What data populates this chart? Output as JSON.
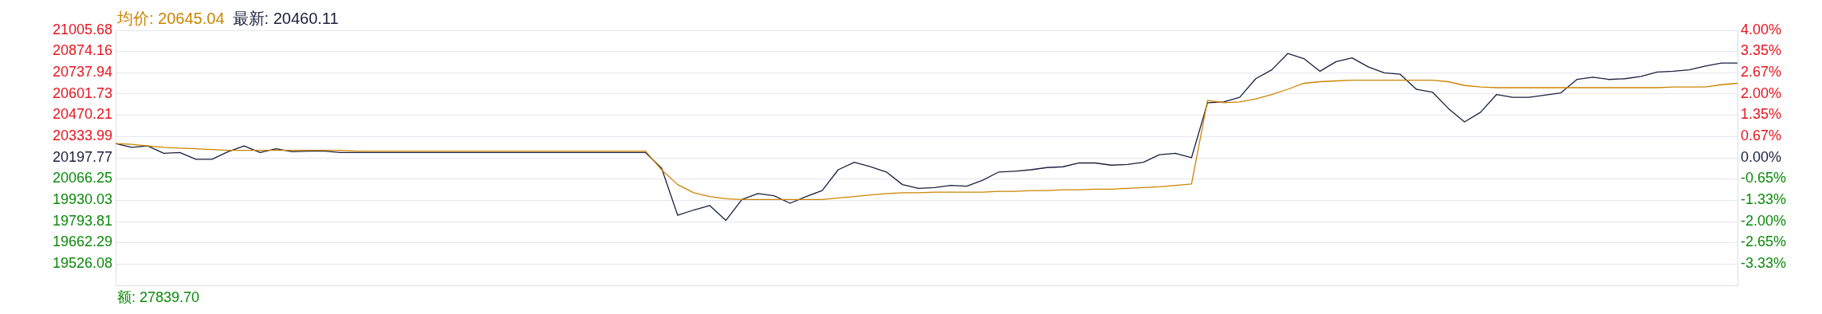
{
  "chart_data": {
    "type": "line",
    "categories": [
      null,
      null,
      null,
      null,
      null,
      null,
      null,
      null,
      null,
      null,
      null,
      null,
      null,
      null,
      null,
      null,
      null,
      null,
      null,
      null,
      null,
      null,
      null,
      null,
      null,
      null,
      null,
      null,
      null,
      null,
      null,
      null,
      null,
      null,
      null,
      null,
      null,
      null,
      null,
      null,
      null,
      null,
      null,
      null,
      null,
      null,
      null,
      null,
      null,
      null,
      null,
      null,
      null,
      null,
      null,
      null,
      null,
      null,
      null,
      null,
      null,
      null,
      null,
      null,
      null,
      null,
      null,
      null,
      null,
      null,
      null,
      null,
      null,
      null,
      null,
      null,
      null,
      null,
      null,
      null,
      null,
      null,
      null,
      null,
      null,
      null,
      null,
      null,
      null,
      null,
      null,
      null,
      null,
      null,
      null,
      null,
      null,
      null,
      null,
      null,
      null,
      null
    ],
    "series": [
      {
        "name": "均价: 20645.04",
        "color": "#cc8400",
        "values": [
          20288,
          20283,
          20273,
          20264,
          20259,
          20255,
          20250,
          20245,
          20245,
          20245,
          20245,
          20245,
          20245,
          20245,
          20245,
          20240,
          20240,
          20240,
          20240,
          20240,
          20240,
          20240,
          20240,
          20240,
          20240,
          20240,
          20240,
          20240,
          20240,
          20240,
          20240,
          20240,
          20240,
          20240,
          20122,
          20028,
          19976,
          19952,
          19938,
          19933,
          19933,
          19933,
          19933,
          19933,
          19933,
          19943,
          19952,
          19962,
          19971,
          19976,
          19976,
          19980,
          19980,
          19980,
          19980,
          19985,
          19985,
          19990,
          19990,
          19995,
          19995,
          19999,
          19999,
          20004,
          20009,
          20014,
          20023,
          20032,
          20562,
          20547,
          20552,
          20571,
          20599,
          20632,
          20670,
          20680,
          20685,
          20689,
          20689,
          20689,
          20689,
          20689,
          20689,
          20680,
          20656,
          20647,
          20642,
          20642,
          20642,
          20642,
          20642,
          20642,
          20642,
          20642,
          20642,
          20642,
          20642,
          20647,
          20647,
          20647,
          20661,
          20670
        ]
      },
      {
        "name": "最新: 20460.11",
        "color": "#1a1f3d",
        "values": [
          20288,
          20264,
          20273,
          20226,
          20231,
          20188,
          20188,
          20236,
          20273,
          20231,
          20255,
          20236,
          20240,
          20240,
          20231,
          20231,
          20231,
          20231,
          20231,
          20231,
          20231,
          20231,
          20231,
          20231,
          20231,
          20231,
          20231,
          20231,
          20231,
          20231,
          20231,
          20231,
          20231,
          20231,
          20132,
          19834,
          19867,
          19895,
          19801,
          19933,
          19971,
          19957,
          19910,
          19952,
          19990,
          20122,
          20169,
          20141,
          20108,
          20028,
          20004,
          20009,
          20023,
          20018,
          20056,
          20108,
          20113,
          20122,
          20136,
          20141,
          20165,
          20165,
          20151,
          20155,
          20169,
          20217,
          20226,
          20198,
          20547,
          20552,
          20581,
          20699,
          20755,
          20859,
          20826,
          20746,
          20807,
          20831,
          20774,
          20736,
          20727,
          20632,
          20614,
          20510,
          20425,
          20486,
          20599,
          20581,
          20581,
          20595,
          20609,
          20694,
          20708,
          20694,
          20699,
          20713,
          20741,
          20746,
          20755,
          20779,
          20798,
          20798
        ]
      }
    ],
    "ylim": [
      19389.86,
      21005.68
    ],
    "yticks": [
      21005.68,
      20874.16,
      20737.94,
      20601.73,
      20470.21,
      20333.99,
      20197.77,
      20066.25,
      19930.03,
      19793.81,
      19662.29,
      19526.08
    ],
    "y2lim": [
      -4,
      4
    ],
    "y2ticks": [
      {
        "value": 4,
        "label": "4.00%"
      },
      {
        "value": 3.35,
        "label": "3.35%"
      },
      {
        "value": 2.67,
        "label": "2.67%"
      },
      {
        "value": 2,
        "label": "2.00%"
      },
      {
        "value": 1.35,
        "label": "1.35%"
      },
      {
        "value": 0.67,
        "label": "0.67%"
      },
      {
        "value": 0,
        "label": "0.00%"
      },
      {
        "value": -0.65,
        "label": "-0.65%"
      },
      {
        "value": -1.33,
        "label": "-1.33%"
      },
      {
        "value": -2,
        "label": "-2.00%"
      },
      {
        "value": -2.65,
        "label": "-2.65%"
      },
      {
        "value": -3.33,
        "label": "-3.33%"
      }
    ],
    "grid": "y",
    "legend": "top left",
    "marker": "none",
    "line_style": "solid",
    "annotations": [
      "额: 27839.70"
    ]
  }
}
